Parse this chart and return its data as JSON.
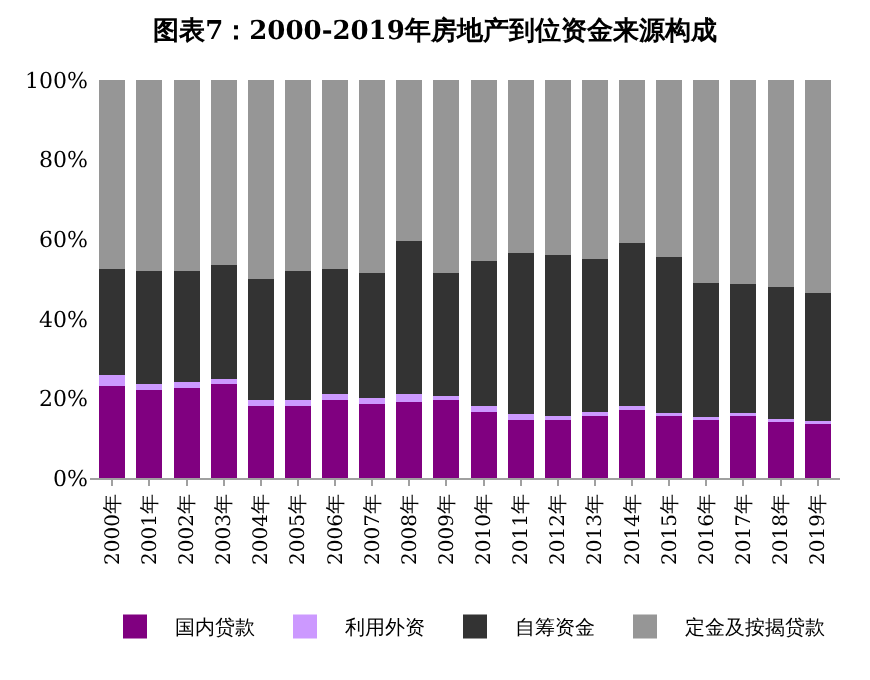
{
  "chart_data": {
    "type": "bar",
    "stacked": true,
    "title": "图表7：2000-2019年房地产到位资金来源构成",
    "categories": [
      "2000年",
      "2001年",
      "2002年",
      "2003年",
      "2004年",
      "2005年",
      "2006年",
      "2007年",
      "2008年",
      "2009年",
      "2010年",
      "2011年",
      "2012年",
      "2013年",
      "2014年",
      "2015年",
      "2016年",
      "2017年",
      "2018年",
      "2019年"
    ],
    "series": [
      {
        "name": "国内贷款",
        "color": "#800080",
        "values": [
          23,
          22,
          22.5,
          24,
          18.5,
          18,
          19.5,
          18.5,
          19,
          19.5,
          17,
          15,
          15,
          16,
          17.5,
          16,
          15,
          16,
          14.5,
          14
        ]
      },
      {
        "name": "利用外资",
        "color": "#cc99ff",
        "values": [
          3,
          1.5,
          1.5,
          1,
          1,
          1.5,
          1.5,
          1.5,
          2,
          1,
          1,
          1,
          0.5,
          0.5,
          0.5,
          0.3,
          0.3,
          0.3,
          0.3,
          0.3
        ]
      },
      {
        "name": "自筹资金",
        "color": "#333333",
        "values": [
          26.5,
          28.5,
          28,
          28.5,
          30.5,
          32.5,
          31.5,
          31.5,
          38.5,
          31,
          36.5,
          40.5,
          40.5,
          38.5,
          41,
          39.2,
          33.7,
          32.4,
          33.2,
          32.2
        ]
      },
      {
        "name": "定金及按揭贷款",
        "color": "#969696",
        "values": [
          47.5,
          48,
          48,
          46.5,
          50,
          48,
          47.5,
          48.5,
          40.5,
          48.5,
          45.5,
          43.5,
          44,
          45,
          41,
          44.5,
          51,
          51.3,
          52,
          53.5
        ]
      }
    ],
    "ylim": [
      0,
      100
    ],
    "yticks": [
      {
        "value": 0,
        "label": "0%"
      },
      {
        "value": 20,
        "label": "20%"
      },
      {
        "value": 40,
        "label": "40%"
      },
      {
        "value": 60,
        "label": "60%"
      },
      {
        "value": 80,
        "label": "80%"
      },
      {
        "value": 100,
        "label": "100%"
      }
    ],
    "legend": "bottom"
  }
}
